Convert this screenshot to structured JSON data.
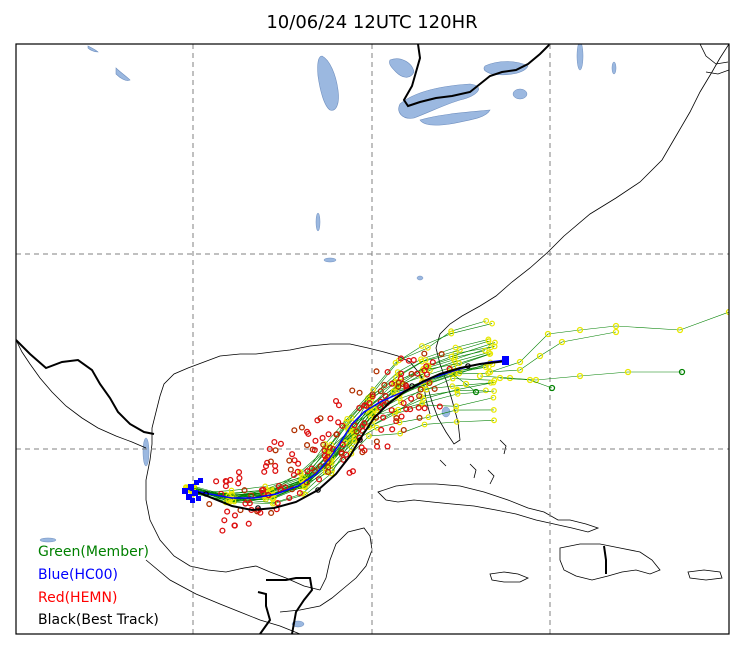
{
  "title": "10/06/24 12UTC 120HR",
  "legend": [
    {
      "label": "Green(Member)",
      "color": "#008000"
    },
    {
      "label": "Blue(HC00)",
      "color": "#0000ff"
    },
    {
      "label": "Red(HEMN)",
      "color": "#ff0000"
    },
    {
      "label": "Black(Best Track)",
      "color": "#000000"
    }
  ],
  "colors": {
    "water": "#9bb8e0",
    "coast": "#000000",
    "grid": "#808080",
    "member_points": "#ffff00",
    "member_lines": "#008000",
    "hemn": "#cc0000",
    "hc00": "#0000ff",
    "best_track": "#000000"
  }
}
